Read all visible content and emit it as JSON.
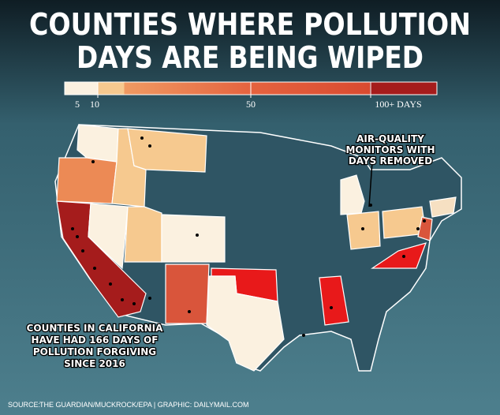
{
  "title": [
    "COUNTIES WHERE POLLUTION",
    "DAYS ARE BEING WIPED"
  ],
  "legend": {
    "labels": [
      "5",
      "10",
      "50",
      "100+ DAYS"
    ]
  },
  "annotations": {
    "monitors": [
      "AIR-QUALITY",
      "MONITORS WITH",
      "DAYS REMOVED"
    ],
    "california": [
      "COUNTIES IN CALIFORNIA",
      "HAVE HAD 166 DAYS OF",
      "POLLUTION FORGIVING",
      "SINCE 2016"
    ]
  },
  "source": {
    "label": "SOURCE:",
    "text": "THE GUARDIAN/MUCKROCK/EPA  |  GRAPHIC: DAILYMAIL.COM"
  }
}
